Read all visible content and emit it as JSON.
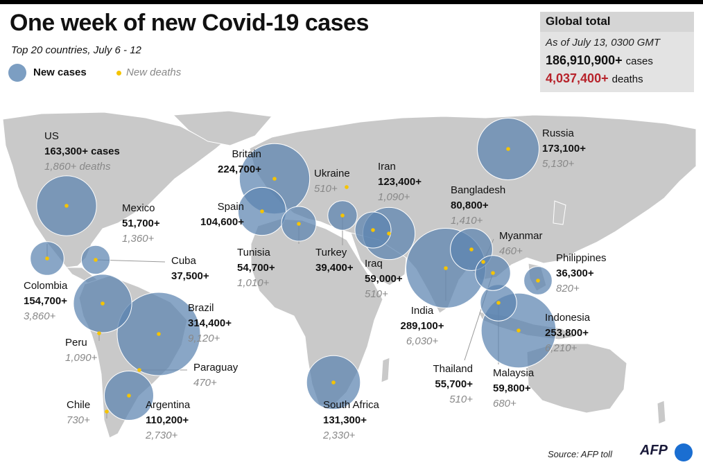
{
  "header": {
    "title": "One week of new Covid-19 cases",
    "subtitle": "Top 20 countries, July 6 - 12"
  },
  "legend": {
    "cases_label": "New cases",
    "deaths_label": "New deaths"
  },
  "global_total": {
    "title": "Global total",
    "as_of": "As of July 13, 0300 GMT",
    "cases_value": "186,910,900+",
    "cases_unit": "cases",
    "deaths_value": "4,037,400+",
    "deaths_unit": "deaths"
  },
  "colors": {
    "bubble": "#5b83b0",
    "death_dot": "#f5c400",
    "deaths_total": "#b7232b",
    "land": "#c9c9c9"
  },
  "countries": [
    {
      "name": "US",
      "cases": "163,300+ cases",
      "deaths": "1,860+ deaths",
      "cases_value": 163300
    },
    {
      "name": "Mexico",
      "cases": "51,700+",
      "deaths": "1,360+",
      "cases_value": 51700
    },
    {
      "name": "Cuba",
      "cases": "37,500+",
      "deaths": "",
      "cases_value": 37500
    },
    {
      "name": "Colombia",
      "cases": "154,700+",
      "deaths": "3,860+",
      "cases_value": 154700
    },
    {
      "name": "Peru",
      "cases": "",
      "deaths": "1,090+",
      "cases_value": 0
    },
    {
      "name": "Brazil",
      "cases": "314,400+",
      "deaths": "9,120+",
      "cases_value": 314400
    },
    {
      "name": "Paraguay",
      "cases": "",
      "deaths": "470+",
      "cases_value": 0
    },
    {
      "name": "Chile",
      "cases": "",
      "deaths": "730+",
      "cases_value": 0
    },
    {
      "name": "Argentina",
      "cases": "110,200+",
      "deaths": "2,730+",
      "cases_value": 110200
    },
    {
      "name": "Britain",
      "cases": "224,700+",
      "deaths": "",
      "cases_value": 224700
    },
    {
      "name": "Spain",
      "cases": "104,600+",
      "deaths": "",
      "cases_value": 104600
    },
    {
      "name": "Tunisia",
      "cases": "54,700+",
      "deaths": "1,010+",
      "cases_value": 54700
    },
    {
      "name": "Ukraine",
      "cases": "",
      "deaths": "510+",
      "cases_value": 0
    },
    {
      "name": "Turkey",
      "cases": "39,400+",
      "deaths": "",
      "cases_value": 39400
    },
    {
      "name": "Iran",
      "cases": "123,400+",
      "deaths": "1,090+",
      "cases_value": 123400
    },
    {
      "name": "Iraq",
      "cases": "59,000+",
      "deaths": "510+",
      "cases_value": 59000
    },
    {
      "name": "South Africa",
      "cases": "131,300+",
      "deaths": "2,330+",
      "cases_value": 131300
    },
    {
      "name": "Russia",
      "cases": "173,100+",
      "deaths": "5,130+",
      "cases_value": 173100
    },
    {
      "name": "Bangladesh",
      "cases": "80,800+",
      "deaths": "1,410+",
      "cases_value": 80800
    },
    {
      "name": "Myanmar",
      "cases": "",
      "deaths": "460+",
      "cases_value": 0
    },
    {
      "name": "India",
      "cases": "289,100+",
      "deaths": "6,030+",
      "cases_value": 289100
    },
    {
      "name": "Thailand",
      "cases": "55,700+",
      "deaths": "510+",
      "cases_value": 55700
    },
    {
      "name": "Malaysia",
      "cases": "59,800+",
      "deaths": "680+",
      "cases_value": 59800
    },
    {
      "name": "Indonesia",
      "cases": "253,800+",
      "deaths": "6,210+",
      "cases_value": 253800
    },
    {
      "name": "Philippines",
      "cases": "36,300+",
      "deaths": "820+",
      "cases_value": 36300
    }
  ],
  "footer": {
    "source": "Source: AFP toll",
    "logo": "AFP"
  }
}
